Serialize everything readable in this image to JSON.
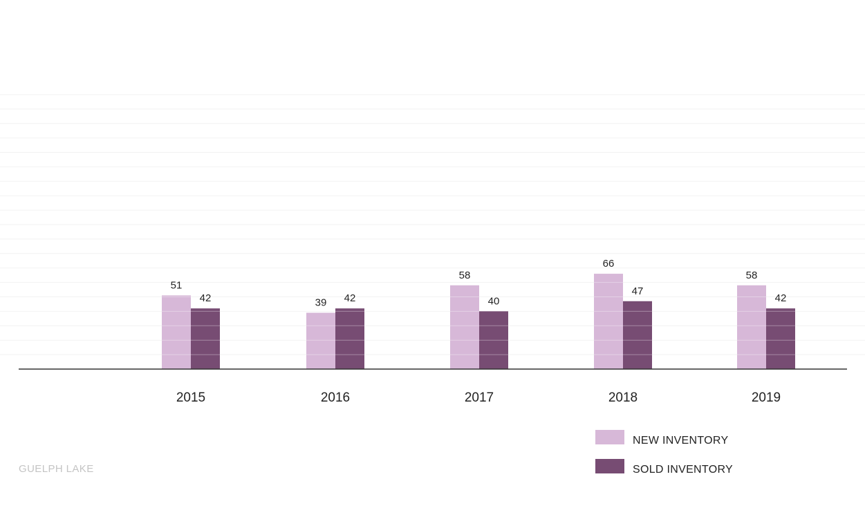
{
  "colors": {
    "new_inventory": "#d7b8d8",
    "sold_inventory": "#774c73",
    "axis": "#333333",
    "grid": "#f2f2f2",
    "footnote": "#c4c4c4"
  },
  "footnote": "GUELPH LAKE",
  "chart_data": {
    "type": "bar",
    "title": "",
    "xlabel": "",
    "ylabel": "",
    "categories": [
      "2015",
      "2016",
      "2017",
      "2018",
      "2019"
    ],
    "series": [
      {
        "name": "NEW INVENTORY",
        "values": [
          51,
          39,
          58,
          66,
          58
        ],
        "color": "#d7b8d8"
      },
      {
        "name": "SOLD INVENTORY",
        "values": [
          42,
          42,
          40,
          47,
          42
        ],
        "color": "#774c73"
      }
    ],
    "ylim": [
      0,
      200
    ],
    "grid": true,
    "legend_position": "bottom-right",
    "data_labels": true
  }
}
